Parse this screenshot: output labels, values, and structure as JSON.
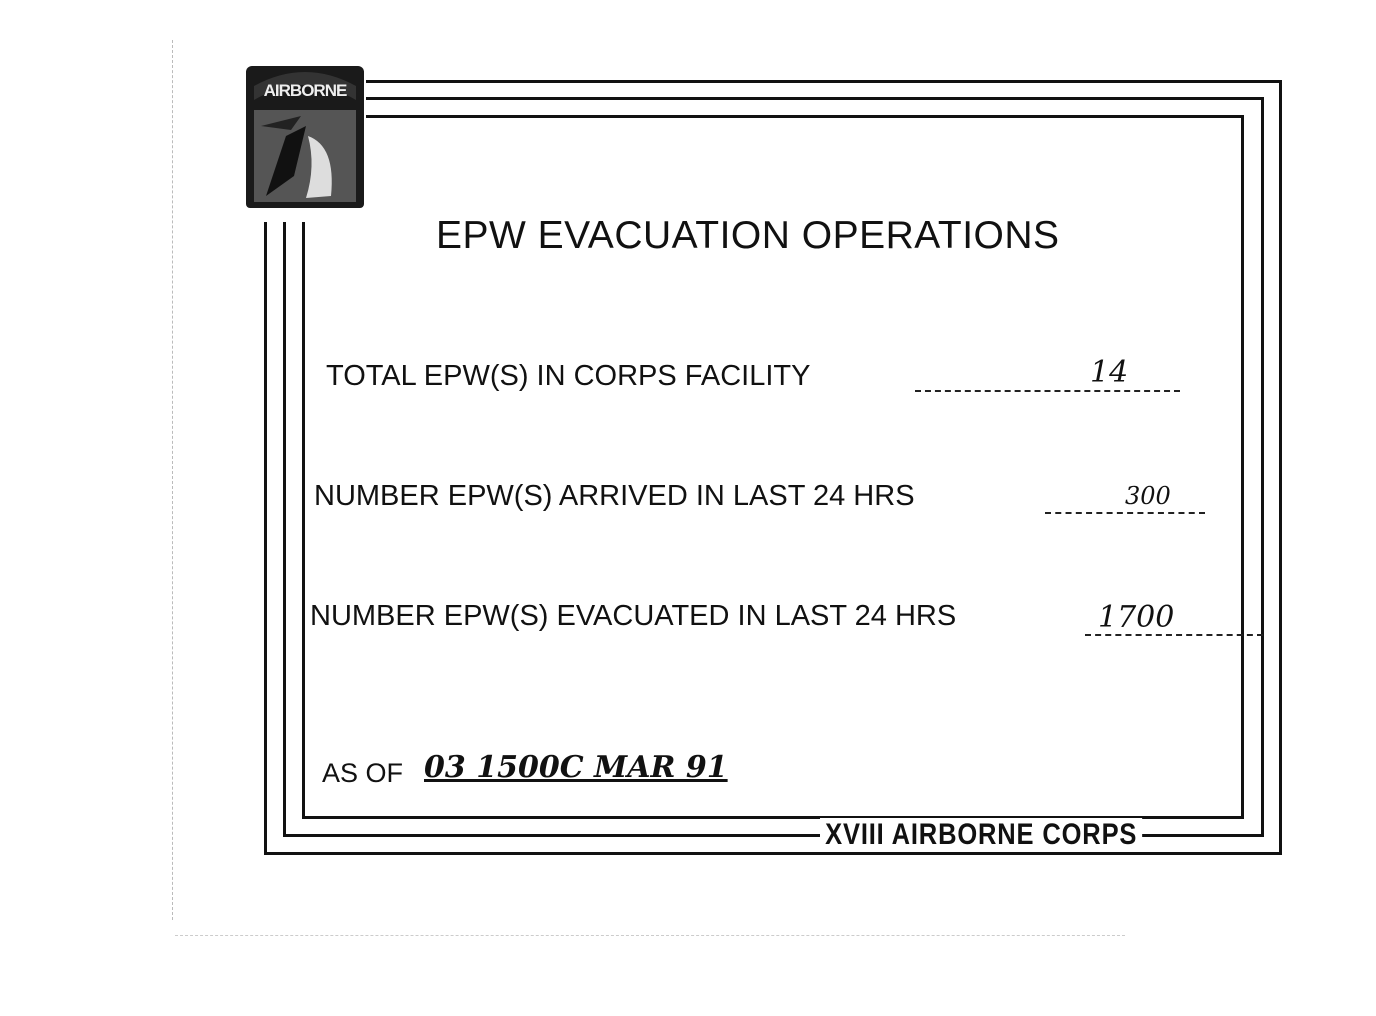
{
  "document": {
    "title": "EPW EVACUATION OPERATIONS",
    "logo_text": "AIRBORNE",
    "fields": [
      {
        "label": "TOTAL EPW(S) IN CORPS FACILITY",
        "value": "14"
      },
      {
        "label": "NUMBER EPW(S) ARRIVED IN LAST 24 HRS",
        "value": "300"
      },
      {
        "label": "NUMBER EPW(S) EVACUATED IN LAST 24 HRS",
        "value": "1700"
      }
    ],
    "as_of_label": "AS OF",
    "as_of_value": "03 1500C MAR 91",
    "footer": "XVIII AIRBORNE CORPS"
  }
}
